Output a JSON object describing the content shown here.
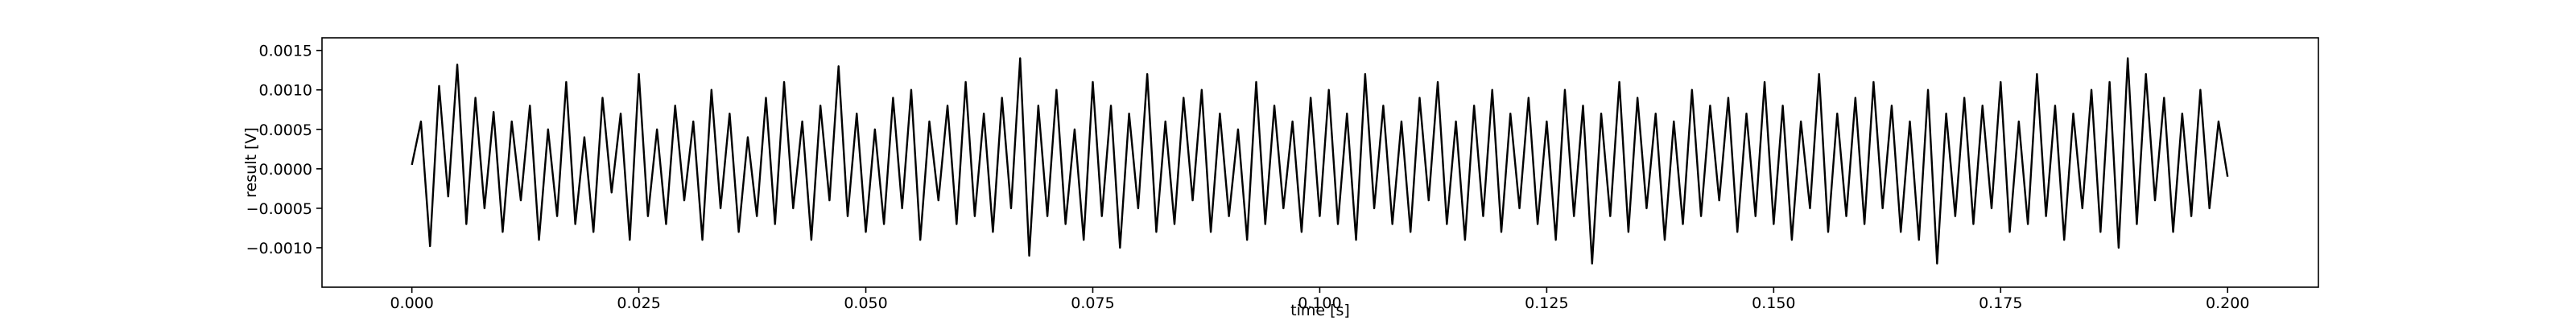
{
  "chart_data": {
    "type": "line",
    "xlabel": "time [s]",
    "ylabel": "result [V]",
    "color": "#000000",
    "grid": false,
    "xlim": [
      -0.0099,
      0.21
    ],
    "ylim": [
      -0.0015,
      0.00166
    ],
    "xticks": [
      {
        "value": 0,
        "label": "0.000"
      },
      0.025,
      {
        "value": 0.05,
        "label": "0.050"
      },
      0.075,
      {
        "value": 0.1,
        "label": "0.100"
      },
      0.125,
      {
        "value": 0.15,
        "label": "0.150"
      },
      0.175,
      {
        "value": 0.2,
        "label": "0.200"
      }
    ],
    "yticks": [
      {
        "value": -0.001,
        "label": "−0.0010"
      },
      {
        "value": -0.0005,
        "label": "−0.0005"
      },
      {
        "value": 0,
        "label": "0.0000"
      },
      0.0005,
      {
        "value": 0.001,
        "label": "0.0010"
      },
      0.0015
    ],
    "x": [
      0,
      0.001,
      0.002,
      0.003,
      0.004,
      0.005,
      0.006,
      0.007,
      0.008,
      0.009,
      0.01,
      0.011,
      0.012,
      0.013,
      0.014,
      0.015,
      0.016,
      0.017,
      0.018,
      0.019,
      0.02,
      0.021,
      0.022,
      0.023,
      0.024,
      0.025,
      0.026,
      0.027,
      0.028,
      0.029,
      0.03,
      0.031,
      0.032,
      0.033,
      0.034,
      0.035,
      0.036,
      0.037,
      0.038,
      0.039,
      0.04,
      0.041,
      0.042,
      0.043,
      0.044,
      0.045,
      0.046,
      0.047,
      0.048,
      0.049,
      0.05,
      0.051,
      0.052,
      0.053,
      0.054,
      0.055,
      0.056,
      0.057,
      0.058,
      0.059,
      0.06,
      0.061,
      0.062,
      0.063,
      0.064,
      0.065,
      0.066,
      0.067,
      0.068,
      0.069,
      0.07,
      0.071,
      0.072,
      0.073,
      0.074,
      0.075,
      0.076,
      0.077,
      0.078,
      0.079,
      0.08,
      0.081,
      0.082,
      0.083,
      0.084,
      0.085,
      0.086,
      0.087,
      0.088,
      0.089,
      0.09,
      0.091,
      0.092,
      0.093,
      0.094,
      0.095,
      0.096,
      0.097,
      0.098,
      0.099,
      0.1,
      0.101,
      0.102,
      0.103,
      0.104,
      0.105,
      0.106,
      0.107,
      0.108,
      0.109,
      0.11,
      0.111,
      0.112,
      0.113,
      0.114,
      0.115,
      0.116,
      0.117,
      0.118,
      0.119,
      0.12,
      0.121,
      0.122,
      0.123,
      0.124,
      0.125,
      0.126,
      0.127,
      0.128,
      0.129,
      0.13,
      0.131,
      0.132,
      0.133,
      0.134,
      0.135,
      0.136,
      0.137,
      0.138,
      0.139,
      0.14,
      0.141,
      0.142,
      0.143,
      0.144,
      0.145,
      0.146,
      0.147,
      0.148,
      0.149,
      0.15,
      0.151,
      0.152,
      0.153,
      0.154,
      0.155,
      0.156,
      0.157,
      0.158,
      0.159,
      0.16,
      0.161,
      0.162,
      0.163,
      0.164,
      0.165,
      0.166,
      0.167,
      0.168,
      0.169,
      0.17,
      0.171,
      0.172,
      0.173,
      0.174,
      0.175,
      0.176,
      0.177,
      0.178,
      0.179,
      0.18,
      0.181,
      0.182,
      0.183,
      0.184,
      0.185,
      0.186,
      0.187,
      0.188,
      0.189,
      0.19,
      0.191,
      0.192,
      0.193,
      0.194,
      0.195,
      0.196,
      0.197,
      0.198,
      0.199,
      0.2
    ],
    "values": [
      5e-05,
      0.0006,
      -0.00098,
      0.00105,
      -0.00035,
      0.00132,
      -0.0007,
      0.0009,
      -0.0005,
      0.00072,
      -0.0008,
      0.0006,
      -0.0004,
      0.0008,
      -0.0009,
      0.0005,
      -0.0006,
      0.0011,
      -0.0007,
      0.0004,
      -0.0008,
      0.0009,
      -0.0003,
      0.0007,
      -0.0009,
      0.0012,
      -0.0006,
      0.0005,
      -0.0007,
      0.0008,
      -0.0004,
      0.0006,
      -0.0009,
      0.001,
      -0.0005,
      0.0007,
      -0.0008,
      0.0004,
      -0.0006,
      0.0009,
      -0.0007,
      0.0011,
      -0.0005,
      0.0006,
      -0.0009,
      0.0008,
      -0.0004,
      0.0013,
      -0.0006,
      0.0007,
      -0.0008,
      0.0005,
      -0.0007,
      0.0009,
      -0.0005,
      0.001,
      -0.0009,
      0.0006,
      -0.0004,
      0.0008,
      -0.0007,
      0.0011,
      -0.0006,
      0.0007,
      -0.0008,
      0.0009,
      -0.0005,
      0.0014,
      -0.0011,
      0.0008,
      -0.0006,
      0.001,
      -0.0007,
      0.0005,
      -0.0009,
      0.0011,
      -0.0006,
      0.0008,
      -0.001,
      0.0007,
      -0.0005,
      0.0012,
      -0.0008,
      0.0006,
      -0.0007,
      0.0009,
      -0.0004,
      0.001,
      -0.0008,
      0.0007,
      -0.0006,
      0.0005,
      -0.0009,
      0.0011,
      -0.0007,
      0.0008,
      -0.0005,
      0.0006,
      -0.0008,
      0.0009,
      -0.0006,
      0.001,
      -0.0007,
      0.0007,
      -0.0009,
      0.0012,
      -0.0005,
      0.0008,
      -0.0007,
      0.0006,
      -0.0008,
      0.0009,
      -0.0004,
      0.0011,
      -0.0007,
      0.0006,
      -0.0009,
      0.0008,
      -0.0006,
      0.001,
      -0.0008,
      0.0007,
      -0.0005,
      0.0009,
      -0.0007,
      0.0006,
      -0.0009,
      0.001,
      -0.0006,
      0.0008,
      -0.0012,
      0.0007,
      -0.0006,
      0.0011,
      -0.0008,
      0.0009,
      -0.0005,
      0.0007,
      -0.0009,
      0.0006,
      -0.0007,
      0.001,
      -0.0006,
      0.0008,
      -0.0004,
      0.0009,
      -0.0008,
      0.0007,
      -0.0006,
      0.0011,
      -0.0007,
      0.0008,
      -0.0009,
      0.0006,
      -0.0005,
      0.0012,
      -0.0008,
      0.0007,
      -0.0006,
      0.0009,
      -0.0007,
      0.0011,
      -0.0005,
      0.0008,
      -0.0008,
      0.0006,
      -0.0009,
      0.001,
      -0.0012,
      0.0007,
      -0.0006,
      0.0009,
      -0.0007,
      0.0008,
      -0.0005,
      0.0011,
      -0.0008,
      0.0006,
      -0.0007,
      0.0012,
      -0.0006,
      0.0008,
      -0.0009,
      0.0007,
      -0.0005,
      0.001,
      -0.0008,
      0.0011,
      -0.001,
      0.0014,
      -0.0007,
      0.0012,
      -0.0004,
      0.0009,
      -0.0008,
      0.0007,
      -0.0006,
      0.001,
      -0.0005,
      0.0006,
      -0.0001
    ]
  }
}
